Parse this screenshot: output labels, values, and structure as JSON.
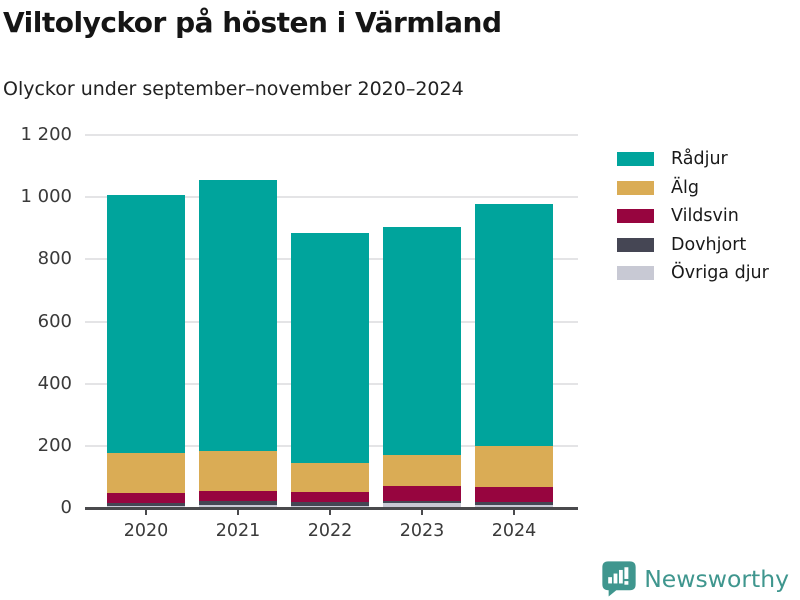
{
  "header": {
    "title": "Viltolyckor på hösten i Värmland",
    "subtitle": "Olyckor under september–november 2020–2024"
  },
  "chart_data": {
    "type": "bar",
    "stacked": true,
    "title": "Viltolyckor på hösten i Värmland",
    "subtitle": "Olyckor under september–november 2020–2024",
    "categories": [
      "2020",
      "2021",
      "2022",
      "2023",
      "2024"
    ],
    "series": [
      {
        "name": "Rådjur",
        "color": "#00a49c",
        "values": [
          830,
          870,
          740,
          735,
          780
        ]
      },
      {
        "name": "Älg",
        "color": "#daac55",
        "values": [
          128,
          130,
          93,
          97,
          131
        ]
      },
      {
        "name": "Vildsvin",
        "color": "#97053f",
        "values": [
          32,
          32,
          32,
          48,
          48
        ]
      },
      {
        "name": "Dovhjort",
        "color": "#454654",
        "values": [
          9,
          13,
          11,
          8,
          9
        ]
      },
      {
        "name": "Övriga djur",
        "color": "#c8c9d4",
        "values": [
          8,
          9,
          8,
          16,
          10
        ]
      }
    ],
    "stack_order": "bottom-to-top is reverse of legend order",
    "ylim": [
      0,
      1200
    ],
    "ytick_step": 200,
    "ytick_labels": [
      "0",
      "200",
      "400",
      "600",
      "800",
      "1 000",
      "1 200"
    ],
    "grid": true,
    "legend_position": "right",
    "axis_color": "#4a4a4d",
    "gridline_color": "#e4e4e6"
  },
  "footer": {
    "brand": "Newsworthy",
    "brand_color": "#3f968e",
    "logo_icon": "bar-chart-speech-bubble-icon"
  }
}
